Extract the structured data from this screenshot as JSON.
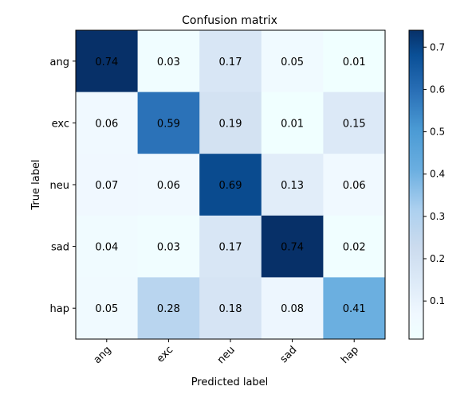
{
  "chart_data": {
    "type": "heatmap",
    "title": "Confusion matrix",
    "xlabel": "Predicted label",
    "ylabel": "True label",
    "x_categories": [
      "ang",
      "exc",
      "neu",
      "sad",
      "hap"
    ],
    "y_categories": [
      "ang",
      "exc",
      "neu",
      "sad",
      "hap"
    ],
    "values": [
      [
        0.74,
        0.03,
        0.17,
        0.05,
        0.01
      ],
      [
        0.06,
        0.59,
        0.19,
        0.01,
        0.15
      ],
      [
        0.07,
        0.06,
        0.69,
        0.13,
        0.06
      ],
      [
        0.04,
        0.03,
        0.17,
        0.74,
        0.02
      ],
      [
        0.05,
        0.28,
        0.18,
        0.08,
        0.41
      ]
    ],
    "colorbar": {
      "range": [
        0.01,
        0.74
      ],
      "ticks": [
        "0.1",
        "0.2",
        "0.3",
        "0.4",
        "0.5",
        "0.6",
        "0.7"
      ]
    },
    "colormap": "Blues",
    "grid": false
  },
  "colors": {
    "colormap_stops": [
      [
        0.0,
        "#f0ffff"
      ],
      [
        0.08,
        "#f0f8ff"
      ],
      [
        0.18,
        "#deebf8"
      ],
      [
        0.3,
        "#cbdbee"
      ],
      [
        0.42,
        "#acd0ef"
      ],
      [
        0.55,
        "#6aaee0"
      ],
      [
        0.68,
        "#4a9ad4"
      ],
      [
        0.8,
        "#2a70b7"
      ],
      [
        0.92,
        "#0a4f96"
      ],
      [
        1.0,
        "#073068"
      ]
    ],
    "light_text": "#ffffff",
    "dark_text": "#000000"
  }
}
